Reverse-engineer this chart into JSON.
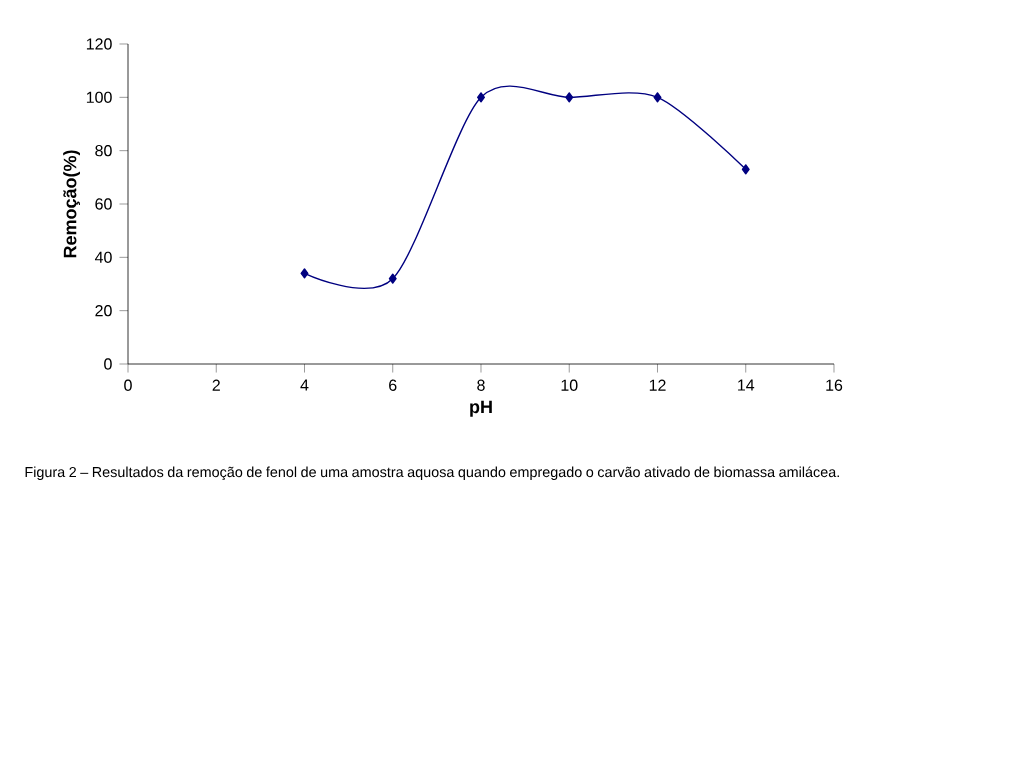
{
  "chart_data": {
    "type": "line",
    "xlabel": "pH",
    "ylabel": "Remoção(%)",
    "x": [
      4,
      6,
      8,
      10,
      12,
      14
    ],
    "series": [
      {
        "color": "#000080",
        "values": [
          34,
          32,
          100,
          100,
          100,
          73
        ]
      }
    ],
    "xlim": [
      0,
      16
    ],
    "xticks": [
      0,
      2,
      4,
      6,
      8,
      10,
      12,
      14,
      16
    ],
    "ylim": [
      0,
      120
    ],
    "yticks": [
      0,
      20,
      40,
      60,
      80,
      100,
      120
    ],
    "marker": "diamond",
    "line_style": "solid",
    "grid": false,
    "annotations": [
      "Figura 2 – Resultados da remoção de fenol de uma amostra aquosa quando empregado o carvão ativado de biomassa amilácea."
    ]
  }
}
